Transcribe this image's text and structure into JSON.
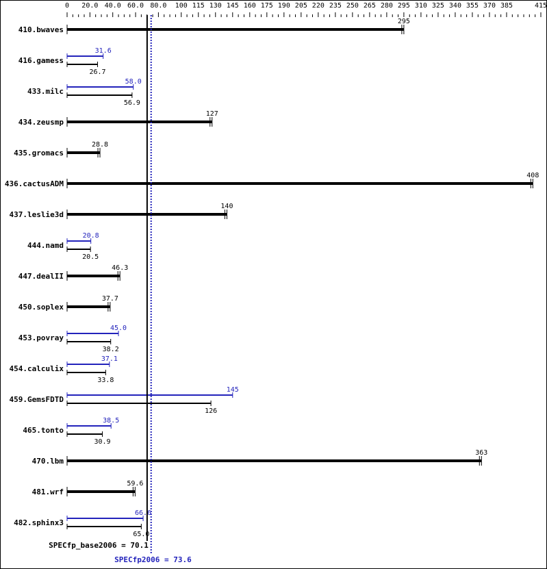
{
  "chart_data": {
    "type": "bar",
    "orientation": "horizontal",
    "xlim": [
      0,
      415
    ],
    "tick_labels": [
      "0",
      "20.0",
      "40.0",
      "60.0",
      "80.0",
      "100",
      "115",
      "130",
      "145",
      "160",
      "175",
      "190",
      "205",
      "220",
      "235",
      "250",
      "265",
      "280",
      "295",
      "310",
      "325",
      "340",
      "355",
      "370",
      "385",
      "415"
    ],
    "tick_values": [
      0,
      20,
      40,
      60,
      80,
      100,
      115,
      130,
      145,
      160,
      175,
      190,
      205,
      220,
      235,
      250,
      265,
      280,
      295,
      310,
      325,
      340,
      355,
      370,
      385,
      415
    ],
    "categories": [
      "410.bwaves",
      "416.gamess",
      "433.milc",
      "434.zeusmp",
      "435.gromacs",
      "436.cactusADM",
      "437.leslie3d",
      "444.namd",
      "447.dealII",
      "450.soplex",
      "453.povray",
      "454.calculix",
      "459.GemsFDTD",
      "465.tonto",
      "470.lbm",
      "481.wrf",
      "482.sphinx3"
    ],
    "series": [
      {
        "name": "SPECfp2006",
        "color": "#2222bb",
        "values": [
          null,
          31.6,
          58.0,
          null,
          null,
          null,
          null,
          20.8,
          null,
          null,
          45.0,
          37.1,
          145,
          38.5,
          null,
          null,
          66.6
        ]
      },
      {
        "name": "SPECfp_base2006",
        "color": "#000000",
        "values": [
          295,
          26.7,
          56.9,
          127,
          28.8,
          408,
          140,
          20.5,
          46.3,
          37.7,
          38.2,
          33.8,
          126,
          30.9,
          363,
          59.6,
          65.0
        ]
      }
    ],
    "value_labels_base": [
      "295",
      "26.7",
      "56.9",
      "127",
      "28.8",
      "408",
      "140",
      "20.5",
      "46.3",
      "37.7",
      "38.2",
      "33.8",
      "126",
      "30.9",
      "363",
      "59.6",
      "65.0"
    ],
    "value_labels_peak": [
      null,
      "31.6",
      "58.0",
      null,
      null,
      null,
      null,
      "20.8",
      null,
      null,
      "45.0",
      "37.1",
      "145",
      "38.5",
      null,
      null,
      "66.6"
    ],
    "reference_lines": [
      {
        "label": "SPECfp_base2006 = 70.1",
        "value": 70.1,
        "color": "#000000",
        "style": "solid"
      },
      {
        "label": "SPECfp2006 = 73.6",
        "value": 73.6,
        "color": "#2222bb",
        "style": "dotted"
      }
    ]
  }
}
